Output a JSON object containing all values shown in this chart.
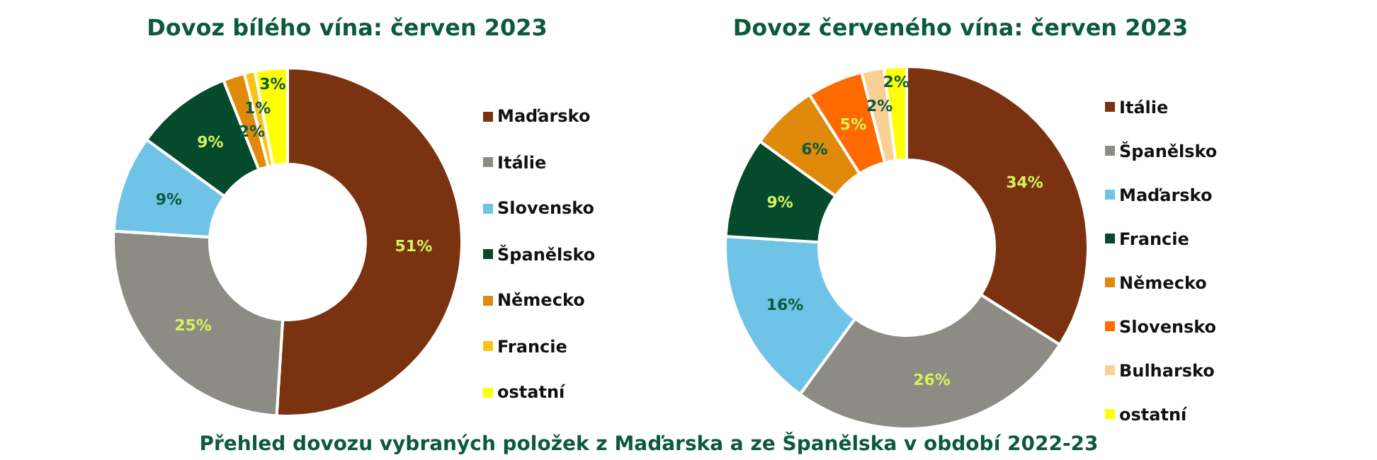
{
  "chart_data": [
    {
      "type": "donut",
      "title": "Dovoz bílého vína: červen 2023",
      "legend": "right",
      "categories": [
        "Maďarsko",
        "Itálie",
        "Slovensko",
        "Španělsko",
        "Německo",
        "Francie",
        "ostatní"
      ],
      "values": [
        51,
        25,
        9,
        9,
        2,
        1,
        3
      ],
      "value_labels": [
        "51%",
        "25%",
        "9%",
        "9%",
        "2%",
        "1%",
        "3%"
      ],
      "colors": [
        "#7a3211",
        "#8c8b84",
        "#6fc3e6",
        "#054a2d",
        "#e08a0b",
        "#f7c518",
        "#ffff00"
      ]
    },
    {
      "type": "donut",
      "title": "Dovoz červeného vína: červen 2023",
      "legend": "right",
      "categories": [
        "Itálie",
        "Španělsko",
        "Maďarsko",
        "Francie",
        "Německo",
        "Slovensko",
        "Bulharsko",
        "ostatní"
      ],
      "values": [
        34,
        26,
        16,
        9,
        6,
        5,
        2,
        2
      ],
      "value_labels": [
        "34%",
        "26%",
        "16%",
        "9%",
        "6%",
        "5%",
        "2%",
        "2%"
      ],
      "colors": [
        "#7a3211",
        "#8c8b84",
        "#6fc3e6",
        "#054a2d",
        "#e08a0b",
        "#ff6a00",
        "#f9cf94",
        "#ffff00"
      ],
      "annotations": [
        "Přehled dovozu vybraných položek z Maďarska a ze Španělska v období 2022-23"
      ]
    }
  ]
}
